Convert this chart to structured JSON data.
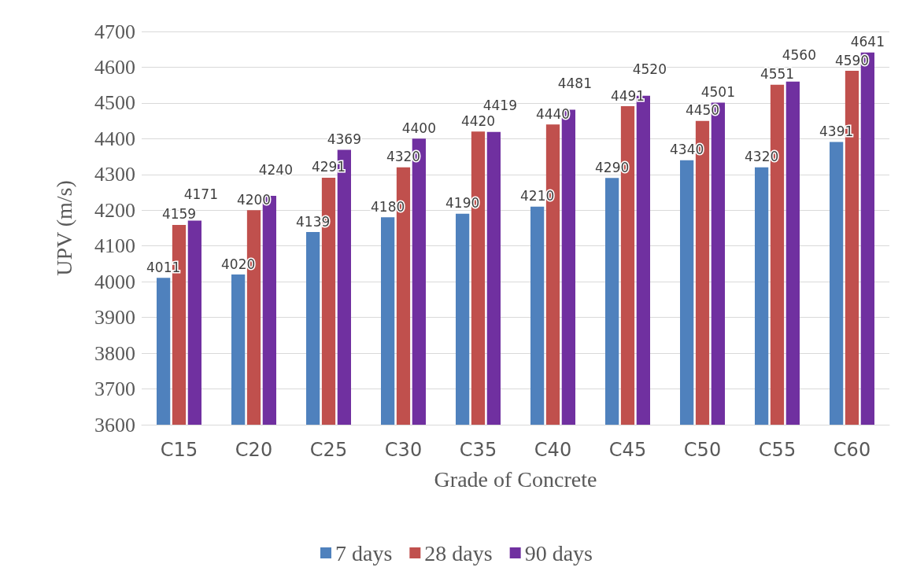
{
  "chart_data": {
    "type": "bar",
    "xlabel": "Grade of Concrete",
    "ylabel": "UPV (m/s)",
    "categories": [
      "C15",
      "C20",
      "C25",
      "C30",
      "C35",
      "C40",
      "C45",
      "C50",
      "C55",
      "C60"
    ],
    "series": [
      {
        "name": "7 days",
        "color": "#4f81bd",
        "values": [
          4011,
          4020,
          4139,
          4180,
          4190,
          4210,
          4290,
          4340,
          4320,
          4391
        ]
      },
      {
        "name": "28 days",
        "color": "#c0504d",
        "values": [
          4159,
          4200,
          4291,
          4320,
          4420,
          4440,
          4491,
          4450,
          4551,
          4590
        ]
      },
      {
        "name": "90 days",
        "color": "#7030a0",
        "values": [
          4171,
          4240,
          4369,
          4400,
          4419,
          4481,
          4520,
          4501,
          4560,
          4641
        ]
      }
    ],
    "ylim": [
      3600,
      4700
    ],
    "yticks": [
      3600,
      3700,
      3800,
      3900,
      4000,
      4100,
      4200,
      4300,
      4400,
      4500,
      4600,
      4700
    ],
    "grid": "y",
    "legend": "bottom",
    "data_labels": true
  }
}
